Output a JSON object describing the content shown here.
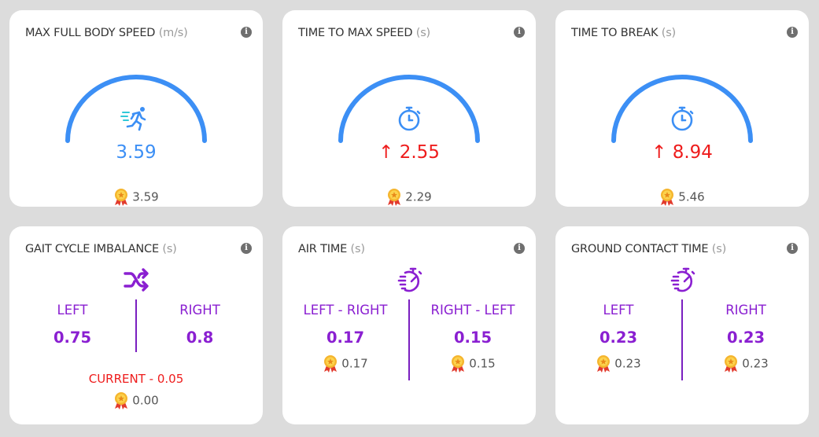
{
  "colors": {
    "accent_blue": "#3c8ff5",
    "alert_red": "#ee1c1c",
    "accent_purple": "#8a1fd1",
    "card_bg": "#ffffff",
    "page_bg": "#dcdcdc"
  },
  "cards_top": [
    {
      "title": "MAX FULL BODY SPEED",
      "unit": "(m/s)",
      "icon": "sprint-icon",
      "value": "3.59",
      "value_color": "#3c8ff5",
      "trend_arrow": "",
      "best_icon": "medal-icon",
      "best": "3.59"
    },
    {
      "title": "TIME TO MAX SPEED",
      "unit": "(s)",
      "icon": "stopwatch-icon",
      "value": "2.55",
      "value_color": "#ee1c1c",
      "trend_arrow": "↑",
      "best_icon": "medal-icon",
      "best": "2.29"
    },
    {
      "title": "TIME TO BREAK",
      "unit": "(s)",
      "icon": "stopwatch-icon",
      "value": "8.94",
      "value_color": "#ee1c1c",
      "trend_arrow": "↑",
      "best_icon": "medal-icon",
      "best": "5.46"
    }
  ],
  "gait": {
    "title": "GAIT CYCLE IMBALANCE",
    "unit": "(s)",
    "icon": "shuffle-icon",
    "left_label": "LEFT",
    "left_value": "0.75",
    "right_label": "RIGHT",
    "right_value": "0.8",
    "current": "CURRENT - 0.05",
    "best": "0.00"
  },
  "air": {
    "title": "AIR TIME",
    "unit": "(s)",
    "icon": "fast-stopwatch-icon",
    "left_label": "LEFT - RIGHT",
    "left_value": "0.17",
    "left_best": "0.17",
    "right_label": "RIGHT - LEFT",
    "right_value": "0.15",
    "right_best": "0.15"
  },
  "ground": {
    "title": "GROUND CONTACT TIME",
    "unit": "(s)",
    "icon": "fast-stopwatch-icon",
    "left_label": "LEFT",
    "left_value": "0.23",
    "left_best": "0.23",
    "right_label": "RIGHT",
    "right_value": "0.23",
    "right_best": "0.23"
  }
}
